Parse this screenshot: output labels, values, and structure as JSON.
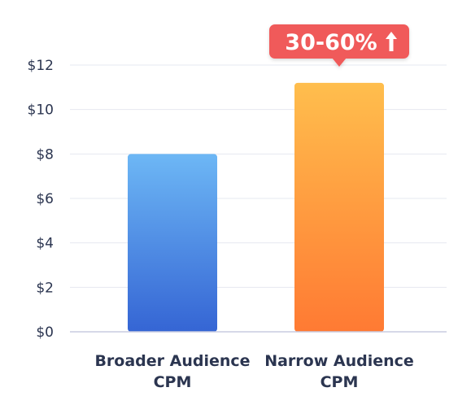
{
  "chart_data": {
    "type": "bar",
    "title": "",
    "xlabel": "",
    "ylabel": "",
    "ylim": [
      0,
      12
    ],
    "y_ticks": [
      "$0",
      "$2",
      "$4",
      "$6",
      "$8",
      "$10",
      "$12"
    ],
    "y_tick_values": [
      0,
      2,
      4,
      6,
      8,
      10,
      12
    ],
    "grid": true,
    "legend": "none",
    "categories": [
      [
        "Broader Audience",
        "CPM"
      ],
      [
        "Narrow Audience",
        "CPM"
      ]
    ],
    "values": [
      8,
      11.2
    ],
    "annotation": {
      "text": "30-60%",
      "arrow": "up",
      "attached_to": "Narrow Audience CPM"
    },
    "colors": {
      "bar_1_top": "#6db7f5",
      "bar_1_bottom": "#3565d4",
      "bar_2_top": "#ffbe4d",
      "bar_2_bottom": "#ff7a33",
      "badge": "#f05a5a",
      "grid": "#e6e8f0",
      "axis": "#c9cbe0",
      "text": "#2b3550"
    }
  }
}
